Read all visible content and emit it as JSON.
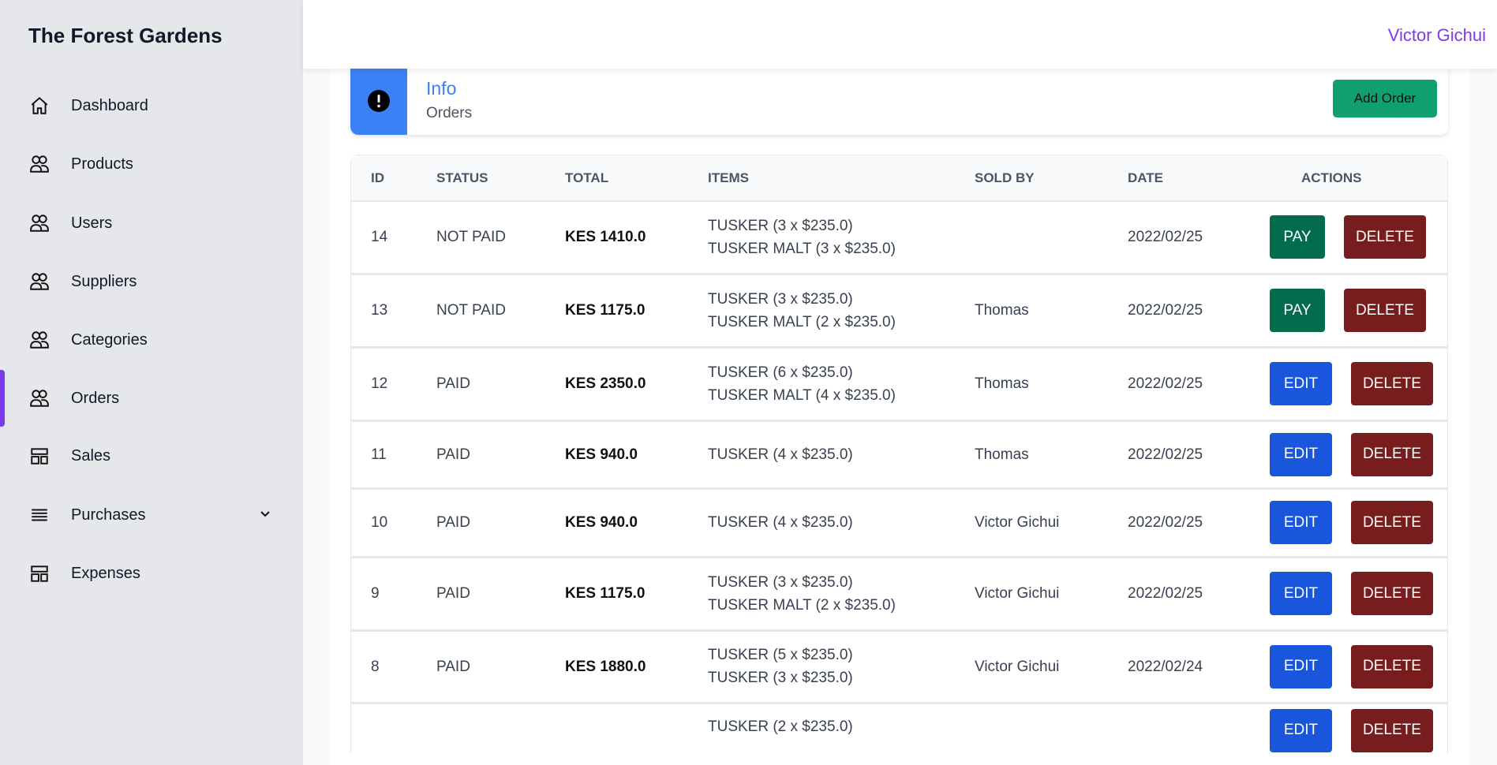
{
  "app": {
    "title": "The Forest Gardens",
    "user": "Victor Gichui"
  },
  "sidebar": {
    "items": [
      {
        "label": "Dashboard",
        "icon": "home-icon"
      },
      {
        "label": "Products",
        "icon": "users-icon"
      },
      {
        "label": "Users",
        "icon": "users-icon"
      },
      {
        "label": "Suppliers",
        "icon": "users-icon"
      },
      {
        "label": "Categories",
        "icon": "users-icon"
      },
      {
        "label": "Orders",
        "icon": "users-icon",
        "active": true
      },
      {
        "label": "Sales",
        "icon": "layout-icon"
      },
      {
        "label": "Purchases",
        "icon": "menu-icon",
        "expandable": true
      },
      {
        "label": "Expenses",
        "icon": "layout-icon"
      }
    ]
  },
  "info": {
    "title": "Info",
    "subtitle": "Orders",
    "add_label": "Add Order"
  },
  "table": {
    "headers": [
      "ID",
      "STATUS",
      "TOTAL",
      "ITEMS",
      "SOLD BY",
      "DATE",
      "ACTIONS"
    ],
    "rows": [
      {
        "id": "14",
        "status": "NOT PAID",
        "total": "KES 1410.0",
        "items": [
          "TUSKER (3 x $235.0)",
          "TUSKER MALT (3 x $235.0)"
        ],
        "sold_by": "",
        "date": "2022/02/25",
        "primary": "PAY",
        "delete": "DELETE"
      },
      {
        "id": "13",
        "status": "NOT PAID",
        "total": "KES 1175.0",
        "items": [
          "TUSKER (3 x $235.0)",
          "TUSKER MALT (2 x $235.0)"
        ],
        "sold_by": "Thomas",
        "date": "2022/02/25",
        "primary": "PAY",
        "delete": "DELETE"
      },
      {
        "id": "12",
        "status": "PAID",
        "total": "KES 2350.0",
        "items": [
          "TUSKER (6 x $235.0)",
          "TUSKER MALT (4 x $235.0)"
        ],
        "sold_by": "Thomas",
        "date": "2022/02/25",
        "primary": "EDIT",
        "delete": "DELETE"
      },
      {
        "id": "11",
        "status": "PAID",
        "total": "KES 940.0",
        "items": [
          "TUSKER (4 x $235.0)"
        ],
        "sold_by": "Thomas",
        "date": "2022/02/25",
        "primary": "EDIT",
        "delete": "DELETE"
      },
      {
        "id": "10",
        "status": "PAID",
        "total": "KES 940.0",
        "items": [
          "TUSKER (4 x $235.0)"
        ],
        "sold_by": "Victor Gichui",
        "date": "2022/02/25",
        "primary": "EDIT",
        "delete": "DELETE"
      },
      {
        "id": "9",
        "status": "PAID",
        "total": "KES 1175.0",
        "items": [
          "TUSKER (3 x $235.0)",
          "TUSKER MALT (2 x $235.0)"
        ],
        "sold_by": "Victor Gichui",
        "date": "2022/02/25",
        "primary": "EDIT",
        "delete": "DELETE"
      },
      {
        "id": "8",
        "status": "PAID",
        "total": "KES 1880.0",
        "items": [
          "TUSKER (5 x $235.0)",
          "TUSKER (3 x $235.0)"
        ],
        "sold_by": "Victor Gichui",
        "date": "2022/02/24",
        "primary": "EDIT",
        "delete": "DELETE"
      },
      {
        "id": "",
        "status": "",
        "total": "",
        "items": [
          "TUSKER (2 x $235.0)"
        ],
        "sold_by": "",
        "date": "",
        "primary": "EDIT",
        "delete": "DELETE"
      }
    ]
  },
  "colors": {
    "accent": "#7c3aed",
    "info": "#3b82f6",
    "pay": "#046c4e",
    "edit": "#1a56db",
    "delete": "#771d1d",
    "add": "#10a06e"
  }
}
